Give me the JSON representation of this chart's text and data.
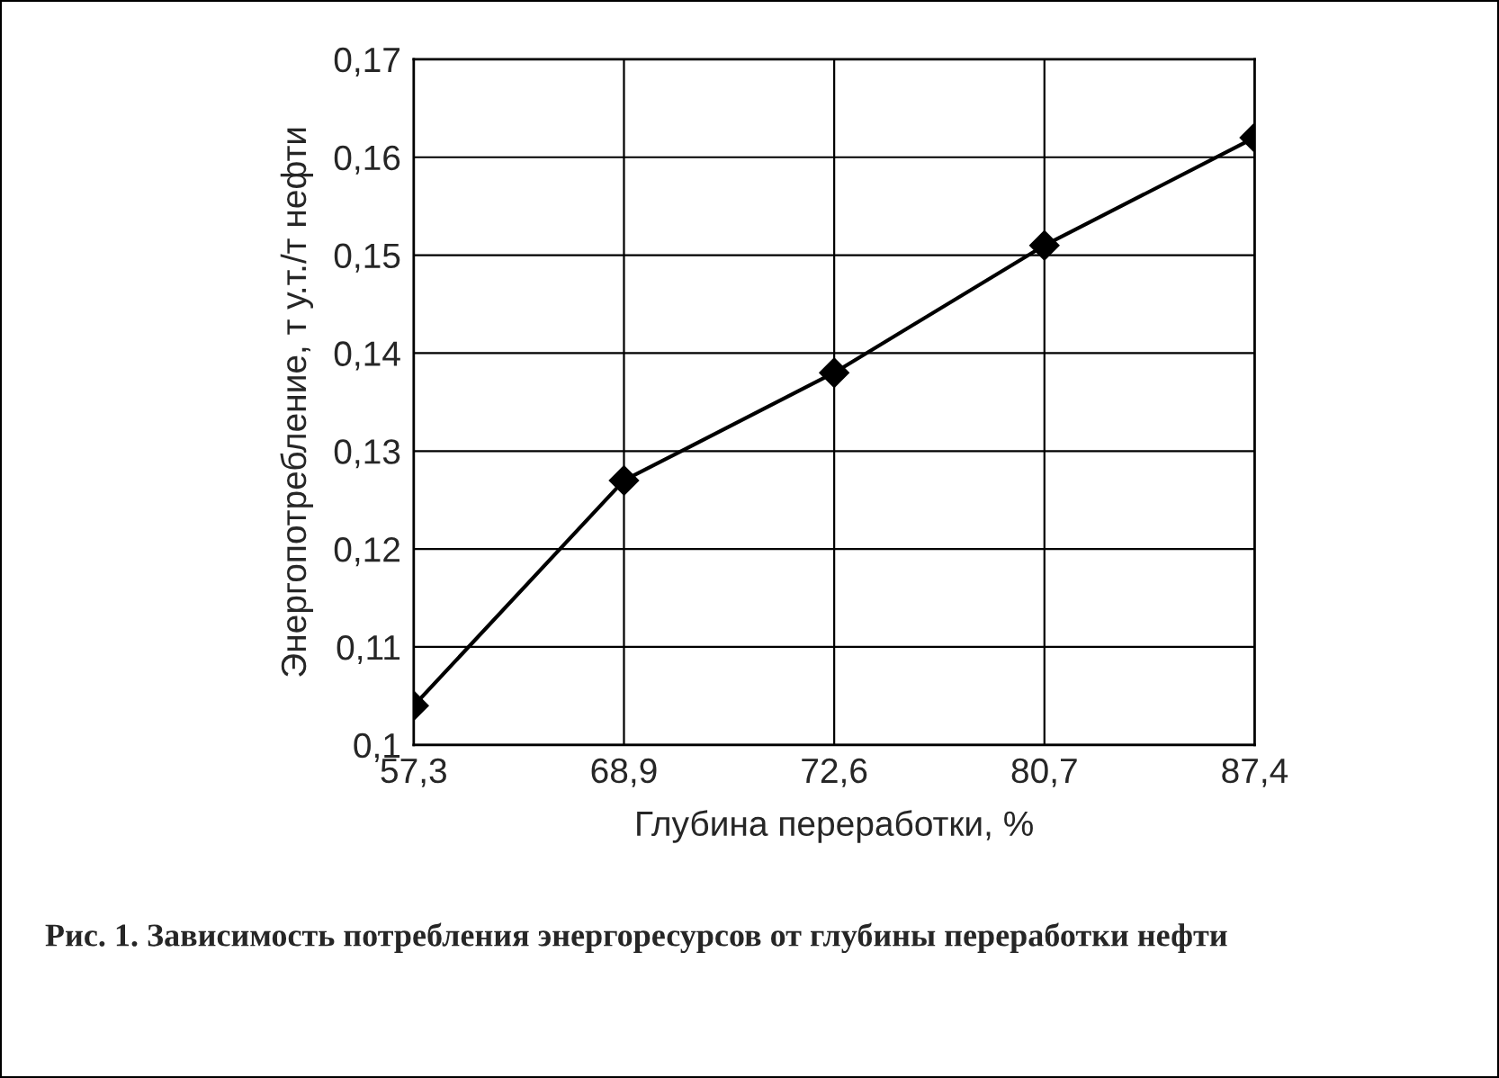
{
  "chart_data": {
    "type": "line",
    "xlabel": "Глубина переработки, %",
    "ylabel": "Энергопотребление, т у.т./т нефти",
    "categories": [
      "57,3",
      "68,9",
      "72,6",
      "80,7",
      "87,4"
    ],
    "series": [
      {
        "color": "#000000",
        "values": [
          0.104,
          0.127,
          0.138,
          0.151,
          0.162
        ]
      }
    ],
    "ylim": [
      0.1,
      0.17
    ],
    "yticks": [
      {
        "value": 0.1,
        "label": "0,1"
      },
      {
        "value": 0.11,
        "label": "0,11"
      },
      {
        "value": 0.12,
        "label": "0,12"
      },
      {
        "value": 0.13,
        "label": "0,13"
      },
      {
        "value": 0.14,
        "label": "0,14"
      },
      {
        "value": 0.15,
        "label": "0,15"
      },
      {
        "value": 0.16,
        "label": "0,16"
      },
      {
        "value": 0.17,
        "label": "0,17"
      }
    ],
    "grid": true,
    "marker": "diamond",
    "line_style": "solid",
    "annotations": [
      "Рис. 1. Зависимость потребления энергоресурсов от глубины переработки нефти"
    ]
  }
}
